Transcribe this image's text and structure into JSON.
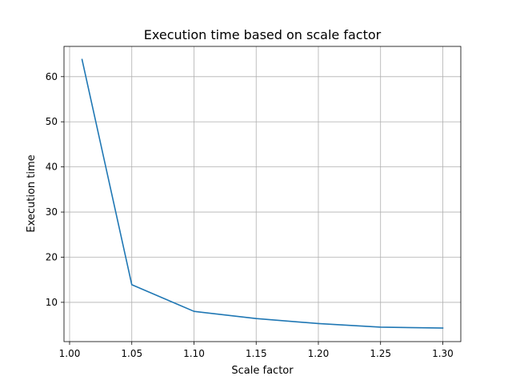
{
  "chart_data": {
    "type": "line",
    "title": "Execution time based on scale factor",
    "xlabel": "Scale factor",
    "ylabel": "Execution time",
    "xlim": [
      0.9955,
      1.3145
    ],
    "ylim": [
      1.3,
      66.7
    ],
    "xticks": [
      1.0,
      1.05,
      1.1,
      1.15,
      1.2,
      1.25,
      1.3
    ],
    "xtick_labels": [
      "1.00",
      "1.05",
      "1.10",
      "1.15",
      "1.20",
      "1.25",
      "1.30"
    ],
    "yticks": [
      10,
      20,
      30,
      40,
      50,
      60
    ],
    "ytick_labels": [
      "10",
      "20",
      "30",
      "40",
      "50",
      "60"
    ],
    "grid": true,
    "line_color": "#1f77b4",
    "series": [
      {
        "x": [
          1.01,
          1.05,
          1.1,
          1.15,
          1.2,
          1.25,
          1.3
        ],
        "y": [
          63.8,
          13.9,
          8.0,
          6.4,
          5.3,
          4.5,
          4.3
        ]
      }
    ]
  }
}
